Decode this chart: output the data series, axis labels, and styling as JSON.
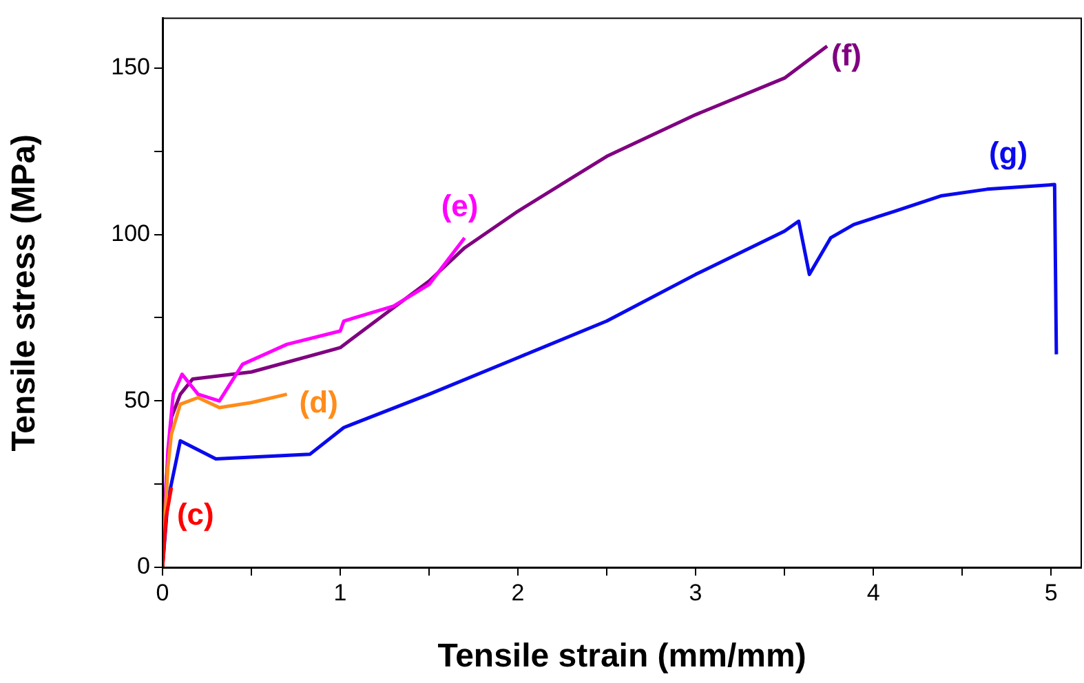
{
  "chart_data": {
    "type": "line",
    "xlabel": "Tensile strain (mm/mm)",
    "ylabel": "Tensile stress (MPa)",
    "xlim": [
      0,
      5.17
    ],
    "xticks": [
      0,
      {
        "value": 0.5,
        "label": null
      },
      1,
      {
        "value": 1.5,
        "label": null
      },
      2,
      {
        "value": 2.5,
        "label": null
      },
      3,
      {
        "value": 3.5,
        "label": null
      },
      4,
      {
        "value": 4.5,
        "label": null
      },
      5
    ],
    "ylim": [
      0,
      165
    ],
    "yticks": [
      0,
      {
        "value": 25,
        "label": null
      },
      50,
      {
        "value": 75,
        "label": null
      },
      100,
      {
        "value": 125,
        "label": null
      },
      150
    ],
    "grid": false,
    "legend": false,
    "marker": "none",
    "line_style": "solid",
    "series": [
      {
        "color": "#ff0000",
        "x": [
          0,
          0.02,
          0.05
        ],
        "values": [
          0,
          15,
          24
        ]
      },
      {
        "color": "#ff8c1a",
        "x": [
          0,
          0.03,
          0.05,
          0.1,
          0.2,
          0.32,
          0.5,
          0.7
        ],
        "values": [
          0,
          30,
          40,
          49,
          51,
          48,
          49.5,
          52
        ]
      },
      {
        "color": "#ff00ff",
        "x": [
          0,
          0.03,
          0.06,
          0.11,
          0.2,
          0.32,
          0.45,
          0.7,
          1.0,
          1.02,
          1.3,
          1.5,
          1.7
        ],
        "values": [
          0,
          35,
          52,
          58,
          52,
          50,
          61,
          67,
          71,
          74,
          78.5,
          85,
          99
        ]
      },
      {
        "color": "#800080",
        "x": [
          0,
          0.02,
          0.05,
          0.1,
          0.17,
          0.5,
          1.0,
          1.5,
          1.7,
          2.0,
          2.5,
          3.0,
          3.5,
          3.74
        ],
        "values": [
          0,
          25,
          45,
          52,
          56.6,
          58.7,
          66,
          86,
          96,
          107,
          123.5,
          136,
          147,
          156.6
        ]
      },
      {
        "color": "#0a0aee",
        "x": [
          0,
          0.03,
          0.1,
          0.3,
          0.83,
          1.02,
          1.5,
          2.0,
          2.5,
          3.0,
          3.5,
          3.58,
          3.64,
          3.76,
          3.89,
          4.12,
          4.38,
          4.64,
          5.02,
          5.03
        ],
        "values": [
          0,
          20,
          38,
          32.6,
          34,
          42,
          52,
          63,
          74,
          88,
          101,
          104,
          88,
          99,
          103,
          107,
          111.6,
          113.6,
          115,
          64
        ]
      }
    ],
    "annotations": [
      "(c)",
      "(d)",
      "(e)",
      "(f)",
      "(g)"
    ]
  }
}
